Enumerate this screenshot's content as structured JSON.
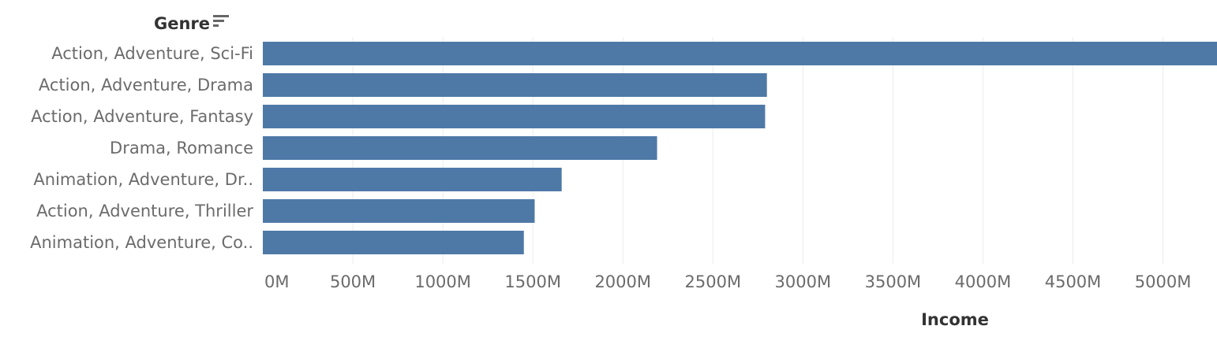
{
  "chart_data": {
    "type": "bar",
    "orientation": "horizontal",
    "ylabel": "Genre",
    "xlabel": "Income",
    "categories": [
      "Action, Adventure, Sci-Fi",
      "Action, Adventure, Drama",
      "Action, Adventure, Fantasy",
      "Drama, Romance",
      "Animation, Adventure, Dr..",
      "Action, Adventure, Thriller",
      "Animation, Adventure, Co.."
    ],
    "values": [
      5300,
      2800,
      2790,
      2190,
      1660,
      1510,
      1450
    ],
    "value_unit": "M",
    "xlim": [
      0,
      5300
    ],
    "ticks": [
      0,
      500,
      1000,
      1500,
      2000,
      2500,
      3000,
      3500,
      4000,
      4500,
      5000
    ],
    "tick_labels": [
      "0M",
      "500M",
      "1000M",
      "1500M",
      "2000M",
      "2500M",
      "3000M",
      "3500M",
      "4000M",
      "4500M",
      "5000M"
    ],
    "bar_color": "#4e79a7",
    "grid": true,
    "sort_indicator": "sort-descending-icon"
  }
}
